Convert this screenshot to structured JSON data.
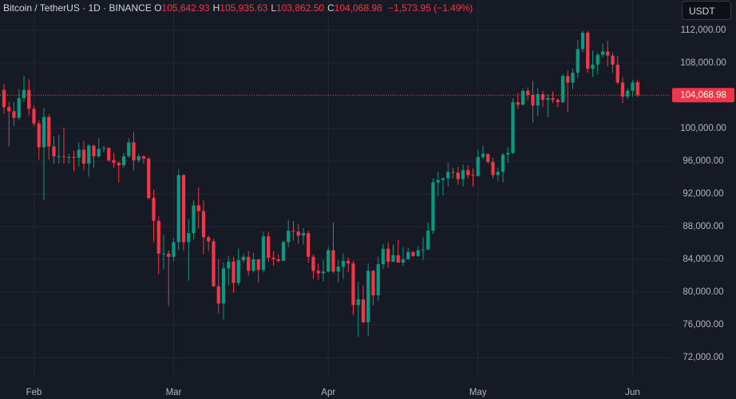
{
  "chart_data": {
    "type": "candlestick",
    "title": "Bitcoin / TetherUS · 1D · BINANCE",
    "ohlc_legend": [
      {
        "label": "O",
        "value": "105,642.93"
      },
      {
        "label": "H",
        "value": "105,935.63"
      },
      {
        "label": "L",
        "value": "103,862.50"
      },
      {
        "label": "C",
        "value": "104,068.98"
      }
    ],
    "change": "−1,573.95 (−1.49%)",
    "currency": "USDT",
    "up_color": "#089981",
    "down_color": "#f23645",
    "grid": true,
    "opens": [
      104700,
      102600,
      102100,
      101300,
      103700,
      104700,
      102400,
      100600,
      97700,
      101400,
      97800,
      96600,
      96600,
      96500,
      96500,
      96400,
      97400,
      95700,
      97900,
      96600,
      97500,
      97600,
      96100,
      95800,
      95500,
      96600,
      98300,
      96100,
      96600,
      96300,
      91500,
      88700,
      84700,
      84700,
      84300,
      86100,
      94300,
      86100,
      87200,
      90600,
      89900,
      86700,
      86200,
      80700,
      78600,
      82900,
      83700,
      81100,
      83900,
      84300,
      82600,
      84000,
      82700,
      86800,
      84200,
      84000,
      83800,
      86100,
      87500,
      87400,
      86900,
      87200,
      84300,
      82600,
      82300,
      82500,
      85100,
      82500,
      83100,
      83800,
      83500,
      78400,
      79100,
      76300,
      82600,
      79600,
      83400,
      85300,
      83700,
      84500,
      83600,
      84000,
      84900,
      84400,
      85100,
      85200,
      87500,
      93400,
      93700,
      93900,
      94700,
      94600,
      93800,
      94900,
      94300,
      94200,
      96500,
      96900,
      95900,
      94300,
      94700,
      96800,
      97000,
      103200,
      102900,
      104600,
      104100,
      102800,
      104200,
      103500,
      103700,
      103500,
      103200,
      106400,
      105600,
      106800,
      109700,
      111700,
      107300,
      107800,
      109000,
      109400,
      108900,
      107800,
      105600,
      103900,
      104600,
      105642.93
    ],
    "highs": [
      105400,
      103200,
      103200,
      104800,
      106400,
      106000,
      102800,
      101000,
      102500,
      101700,
      99000,
      99200,
      100100,
      96900,
      97300,
      98300,
      98500,
      98100,
      98000,
      98800,
      97900,
      97700,
      97000,
      96000,
      97000,
      98800,
      99500,
      96900,
      96700,
      96500,
      92500,
      89300,
      87000,
      85100,
      86600,
      95000,
      94400,
      88900,
      91200,
      92800,
      91200,
      86900,
      86500,
      84000,
      83600,
      84400,
      84300,
      85300,
      84700,
      85000,
      84800,
      84000,
      87400,
      87400,
      85000,
      84600,
      86300,
      88800,
      88700,
      88300,
      87800,
      87500,
      84600,
      83500,
      83900,
      85500,
      88500,
      83900,
      84700,
      84200,
      83800,
      81200,
      80800,
      83500,
      82700,
      84300,
      85900,
      86100,
      85800,
      86400,
      85500,
      85400,
      85000,
      85600,
      86700,
      88500,
      93900,
      94700,
      94000,
      95800,
      95200,
      95300,
      95600,
      95500,
      95100,
      97400,
      97900,
      96900,
      96400,
      95200,
      97000,
      97700,
      103700,
      104300,
      104900,
      105000,
      105800,
      104900,
      104600,
      104200,
      104500,
      103700,
      106600,
      107100,
      107300,
      110800,
      111900,
      111900,
      109500,
      109300,
      110400,
      110700,
      109300,
      108900,
      106300,
      104900,
      105900,
      105935.63
    ],
    "lows": [
      101800,
      97800,
      100300,
      101000,
      103300,
      101600,
      100300,
      96200,
      91200,
      96200,
      95700,
      95700,
      95700,
      95700,
      94800,
      95300,
      94900,
      94100,
      95200,
      96400,
      97100,
      95900,
      95200,
      93400,
      95200,
      96400,
      94900,
      95800,
      95700,
      91300,
      86100,
      82200,
      82800,
      78300,
      83800,
      85100,
      85100,
      81400,
      86400,
      87800,
      84600,
      85000,
      80600,
      77400,
      76600,
      80800,
      79900,
      80800,
      83600,
      82000,
      82400,
      81200,
      82400,
      83700,
      83200,
      83600,
      83800,
      85500,
      86300,
      85900,
      85800,
      83600,
      81600,
      81500,
      81300,
      82400,
      82300,
      81200,
      81600,
      82400,
      77200,
      74500,
      76200,
      74600,
      78400,
      78900,
      82800,
      83000,
      83700,
      83600,
      83200,
      84100,
      84300,
      84300,
      83900,
      85100,
      87100,
      91700,
      91800,
      92900,
      93900,
      93100,
      92900,
      93900,
      92900,
      94100,
      96300,
      95700,
      93900,
      93500,
      93400,
      95800,
      96900,
      102400,
      102800,
      103400,
      100700,
      101500,
      102600,
      101400,
      103100,
      102600,
      103100,
      102000,
      104800,
      106100,
      109300,
      106800,
      106300,
      106600,
      108700,
      107600,
      106800,
      105400,
      103100,
      103600,
      103900,
      103862.5
    ],
    "closes": [
      102600,
      102100,
      101300,
      103700,
      104700,
      102400,
      100600,
      97700,
      101400,
      97800,
      96600,
      96600,
      96500,
      96500,
      96400,
      97400,
      95700,
      97900,
      96600,
      97500,
      97600,
      96100,
      95800,
      95500,
      96600,
      98300,
      96100,
      96600,
      96300,
      91500,
      88700,
      84700,
      84700,
      84300,
      86100,
      94300,
      86100,
      87200,
      90600,
      89900,
      86700,
      86200,
      80700,
      78600,
      82900,
      83700,
      81100,
      83900,
      84300,
      82600,
      84000,
      82700,
      86800,
      84200,
      84000,
      83800,
      86100,
      87500,
      87400,
      86900,
      87200,
      84300,
      82600,
      82300,
      82500,
      85100,
      82500,
      83100,
      83800,
      83500,
      78400,
      79100,
      76300,
      82600,
      79600,
      83400,
      85300,
      83700,
      84500,
      83600,
      84000,
      84900,
      84400,
      85100,
      85200,
      87500,
      93400,
      93700,
      93900,
      94700,
      94600,
      93800,
      94900,
      94300,
      94200,
      96500,
      96900,
      95900,
      94300,
      94700,
      96800,
      97000,
      103200,
      102900,
      104600,
      104100,
      102800,
      104200,
      103500,
      103700,
      103500,
      103200,
      106400,
      105600,
      106800,
      109700,
      111700,
      107300,
      107800,
      109000,
      109400,
      108900,
      107800,
      105600,
      103900,
      104600,
      105600,
      104068.98
    ],
    "last_price": {
      "value": 104068.98,
      "label": "104,068.98"
    },
    "xlim": [
      -0.8,
      133.6
    ],
    "xticks": [
      {
        "value": 6,
        "label": "Feb"
      },
      {
        "value": 34,
        "label": "Mar"
      },
      {
        "value": 65,
        "label": "Apr"
      },
      {
        "value": 95,
        "label": "May"
      },
      {
        "value": 126,
        "label": "Jun"
      }
    ],
    "ylim": [
      69850,
      115700
    ],
    "yticks": [
      {
        "value": 72000,
        "label": "72,000.00"
      },
      {
        "value": 76000,
        "label": "76,000.00"
      },
      {
        "value": 80000,
        "label": "80,000.00"
      },
      {
        "value": 84000,
        "label": "84,000.00"
      },
      {
        "value": 88000,
        "label": "88,000.00"
      },
      {
        "value": 92000,
        "label": "92,000.00"
      },
      {
        "value": 96000,
        "label": "96,000.00"
      },
      {
        "value": 100000,
        "label": "100,000.00"
      },
      {
        "value": 104000,
        "label": "104,000.00"
      },
      {
        "value": 108000,
        "label": "108,000.00"
      },
      {
        "value": 112000,
        "label": "112,000.00"
      }
    ]
  }
}
